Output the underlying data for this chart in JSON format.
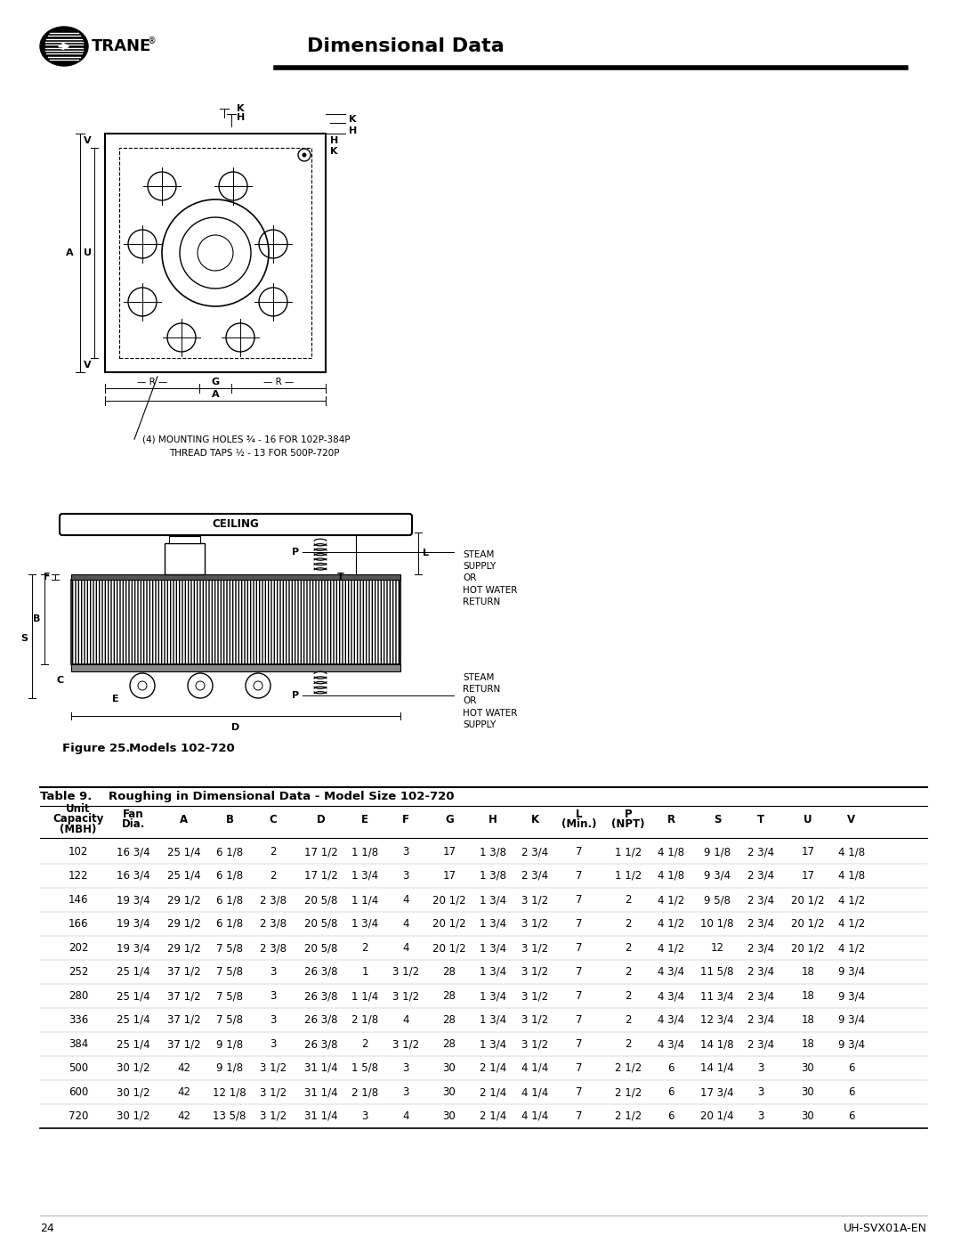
{
  "title": "Dimensional Data",
  "background_color": "#ffffff",
  "trane_logo_text": "TRANE",
  "figure_caption": "Figure 25.",
  "figure_caption2": "Models 102-720",
  "table_title": "Table 9.    Roughing in Dimensional Data - Model Size 102-720",
  "rows": [
    [
      "102",
      "16 3/4",
      "25 1/4",
      "6 1/8",
      "2",
      "17 1/2",
      "1 1/8",
      "3",
      "17",
      "1 3/8",
      "2 3/4",
      "7",
      "1 1/2",
      "4 1/8",
      "9 1/8",
      "2 3/4",
      "17",
      "4 1/8"
    ],
    [
      "122",
      "16 3/4",
      "25 1/4",
      "6 1/8",
      "2",
      "17 1/2",
      "1 3/4",
      "3",
      "17",
      "1 3/8",
      "2 3/4",
      "7",
      "1 1/2",
      "4 1/8",
      "9 3/4",
      "2 3/4",
      "17",
      "4 1/8"
    ],
    [
      "146",
      "19 3/4",
      "29 1/2",
      "6 1/8",
      "2 3/8",
      "20 5/8",
      "1 1/4",
      "4",
      "20 1/2",
      "1 3/4",
      "3 1/2",
      "7",
      "2",
      "4 1/2",
      "9 5/8",
      "2 3/4",
      "20 1/2",
      "4 1/2"
    ],
    [
      "166",
      "19 3/4",
      "29 1/2",
      "6 1/8",
      "2 3/8",
      "20 5/8",
      "1 3/4",
      "4",
      "20 1/2",
      "1 3/4",
      "3 1/2",
      "7",
      "2",
      "4 1/2",
      "10 1/8",
      "2 3/4",
      "20 1/2",
      "4 1/2"
    ],
    [
      "202",
      "19 3/4",
      "29 1/2",
      "7 5/8",
      "2 3/8",
      "20 5/8",
      "2",
      "4",
      "20 1/2",
      "1 3/4",
      "3 1/2",
      "7",
      "2",
      "4 1/2",
      "12",
      "2 3/4",
      "20 1/2",
      "4 1/2"
    ],
    [
      "252",
      "25 1/4",
      "37 1/2",
      "7 5/8",
      "3",
      "26 3/8",
      "1",
      "3 1/2",
      "28",
      "1 3/4",
      "3 1/2",
      "7",
      "2",
      "4 3/4",
      "11 5/8",
      "2 3/4",
      "18",
      "9 3/4"
    ],
    [
      "280",
      "25 1/4",
      "37 1/2",
      "7 5/8",
      "3",
      "26 3/8",
      "1 1/4",
      "3 1/2",
      "28",
      "1 3/4",
      "3 1/2",
      "7",
      "2",
      "4 3/4",
      "11 3/4",
      "2 3/4",
      "18",
      "9 3/4"
    ],
    [
      "336",
      "25 1/4",
      "37 1/2",
      "7 5/8",
      "3",
      "26 3/8",
      "2 1/8",
      "4",
      "28",
      "1 3/4",
      "3 1/2",
      "7",
      "2",
      "4 3/4",
      "12 3/4",
      "2 3/4",
      "18",
      "9 3/4"
    ],
    [
      "384",
      "25 1/4",
      "37 1/2",
      "9 1/8",
      "3",
      "26 3/8",
      "2",
      "3 1/2",
      "28",
      "1 3/4",
      "3 1/2",
      "7",
      "2",
      "4 3/4",
      "14 1/8",
      "2 3/4",
      "18",
      "9 3/4"
    ],
    [
      "500",
      "30 1/2",
      "42",
      "9 1/8",
      "3 1/2",
      "31 1/4",
      "1 5/8",
      "3",
      "30",
      "2 1/4",
      "4 1/4",
      "7",
      "2 1/2",
      "6",
      "14 1/4",
      "3",
      "30",
      "6"
    ],
    [
      "600",
      "30 1/2",
      "42",
      "12 1/8",
      "3 1/2",
      "31 1/4",
      "2 1/8",
      "3",
      "30",
      "2 1/4",
      "4 1/4",
      "7",
      "2 1/2",
      "6",
      "17 3/4",
      "3",
      "30",
      "6"
    ],
    [
      "720",
      "30 1/2",
      "42",
      "13 5/8",
      "3 1/2",
      "31 1/4",
      "3",
      "4",
      "30",
      "2 1/4",
      "4 1/4",
      "7",
      "2 1/2",
      "6",
      "20 1/4",
      "3",
      "30",
      "6"
    ]
  ],
  "page_number": "24",
  "page_footer_right": "UH-SVX01A-EN"
}
